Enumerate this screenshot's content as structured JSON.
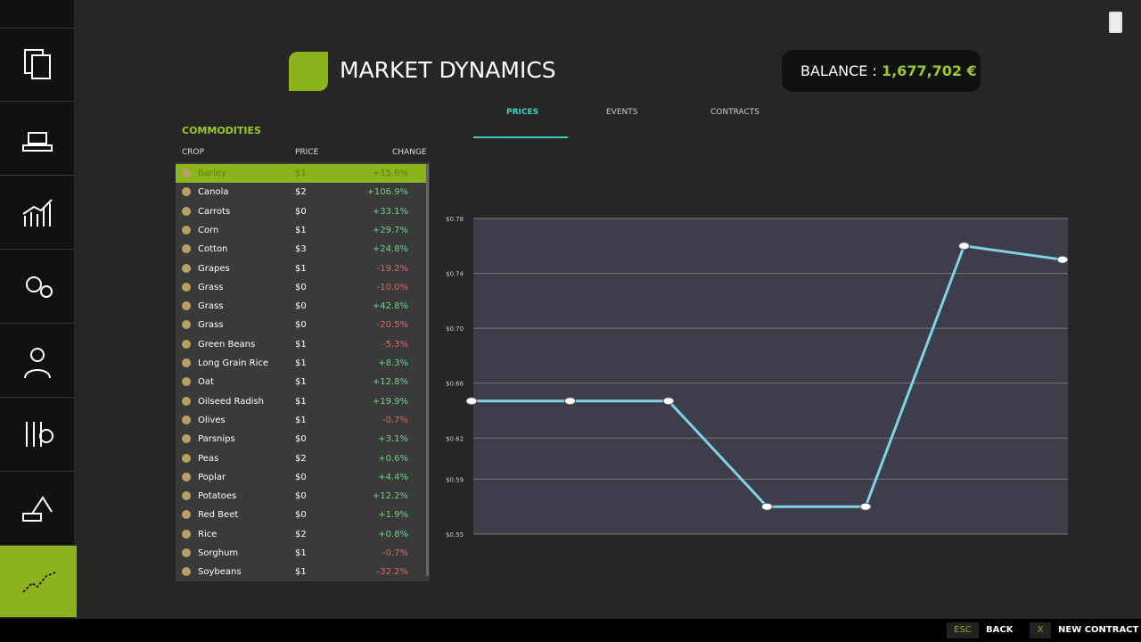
{
  "header": {
    "title": "MARKET DYNAMICS",
    "balance_label": "BALANCE :",
    "balance_value": "1,677,702 €"
  },
  "tabs": [
    "PRICES",
    "EVENTS",
    "CONTRACTS"
  ],
  "commodities": {
    "title": "COMMODITIES",
    "columns": [
      "CROP",
      "PRICE",
      "CHANGE"
    ],
    "rows": [
      [
        "Barley",
        "$1",
        "+15.6%"
      ],
      [
        "Canola",
        "$2",
        "+106.9%"
      ],
      [
        "Carrots",
        "$0",
        "+33.1%"
      ],
      [
        "Corn",
        "$1",
        "+29.7%"
      ],
      [
        "Cotton",
        "$3",
        "+24.8%"
      ],
      [
        "Grapes",
        "$1",
        "-19.2%"
      ],
      [
        "Grass",
        "$0",
        "-10.0%"
      ],
      [
        "Grass",
        "$0",
        "+42.8%"
      ],
      [
        "Grass",
        "$0",
        "-20.5%"
      ],
      [
        "Green Beans",
        "$1",
        "-5.3%"
      ],
      [
        "Long Grain Rice",
        "$1",
        "+8.3%"
      ],
      [
        "Oat",
        "$1",
        "+12.8%"
      ],
      [
        "Oilseed Radish",
        "$1",
        "+19.9%"
      ],
      [
        "Olives",
        "$1",
        "-0.7%"
      ],
      [
        "Parsnips",
        "$0",
        "+3.1%"
      ],
      [
        "Peas",
        "$2",
        "+0.6%"
      ],
      [
        "Poplar",
        "$0",
        "+4.4%"
      ],
      [
        "Potatoes",
        "$0",
        "+12.2%"
      ],
      [
        "Red Beet",
        "$0",
        "+1.9%"
      ],
      [
        "Rice",
        "$2",
        "+0.8%"
      ],
      [
        "Sorghum",
        "$1",
        "-0.7%"
      ],
      [
        "Soybeans",
        "$1",
        "-32.2%"
      ]
    ]
  },
  "chart": {
    "type": "line",
    "categories": [
      null,
      null,
      null,
      null,
      null,
      null,
      null
    ],
    "values": [
      0.647,
      0.647,
      0.647,
      0.57,
      0.57,
      0.76,
      0.75
    ],
    "color": "#7fd3e3",
    "ylim": [
      0.55,
      0.78
    ],
    "yticks": [
      {
        "value": 0.78,
        "label": "$0.78"
      },
      {
        "value": 0.74,
        "label": "$0.74"
      },
      {
        "value": 0.7,
        "label": "$0.70"
      },
      {
        "value": 0.66,
        "label": "$0.66"
      },
      {
        "value": 0.62,
        "label": "$0.62"
      },
      {
        "value": 0.59,
        "label": "$0.59"
      },
      {
        "value": 0.55,
        "label": "$0.55"
      }
    ],
    "grid": true
  },
  "footer": {
    "back_key": "ESC",
    "back": "BACK",
    "contract_key": "X",
    "contract": "NEW CONTRACT"
  }
}
